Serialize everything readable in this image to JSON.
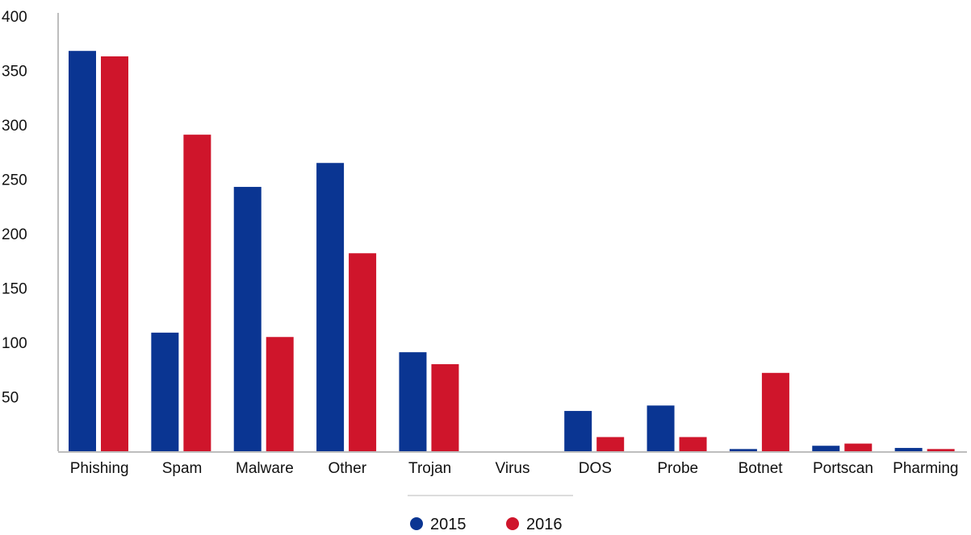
{
  "chart_data": {
    "type": "bar",
    "title": "",
    "xlabel": "",
    "ylabel": "",
    "ylim": [
      0,
      400
    ],
    "yticks": [
      50,
      100,
      150,
      200,
      250,
      300,
      350,
      400
    ],
    "grid": false,
    "legend_position": "bottom-center",
    "categories": [
      "Phishing",
      "Spam",
      "Malware",
      "Other",
      "Trojan",
      "Virus",
      "DOS",
      "Probe",
      "Botnet",
      "Portscan",
      "Pharming"
    ],
    "series": [
      {
        "name": "2015",
        "color": "#0a3592",
        "values": [
          368,
          109,
          243,
          265,
          91,
          0,
          37,
          42,
          2,
          5,
          3
        ]
      },
      {
        "name": "2016",
        "color": "#cf152b",
        "values": [
          363,
          291,
          105,
          182,
          80,
          0,
          13,
          13,
          72,
          7,
          2
        ]
      }
    ]
  }
}
